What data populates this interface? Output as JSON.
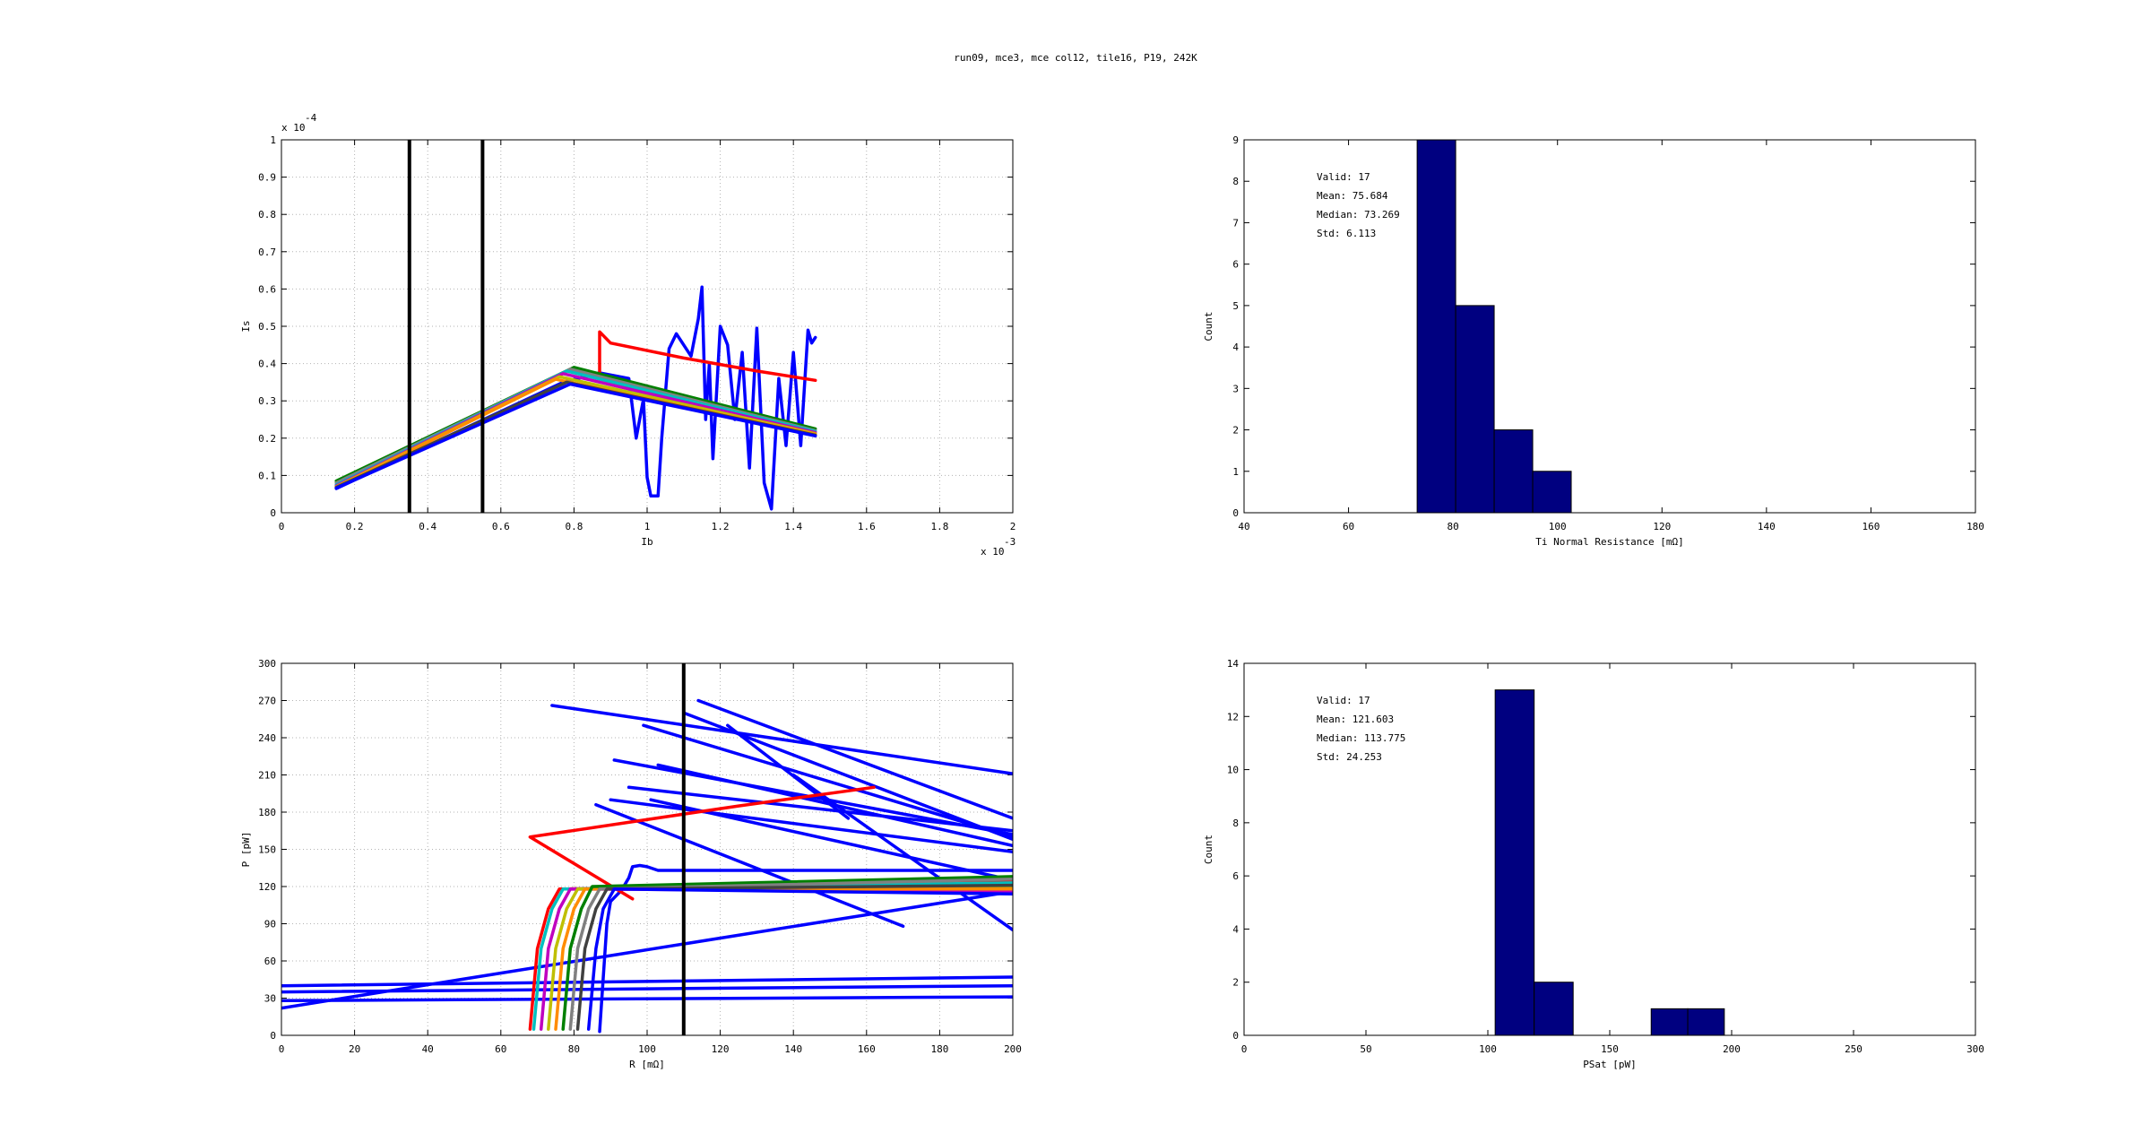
{
  "figure": {
    "title": "run09, mce3, mce col12, tile16, P19, 242K"
  },
  "colors": {
    "hist_fill": "#000080",
    "vline": "#000000",
    "grid": "#b3b3b3",
    "bundle": [
      "#0000ff",
      "#ff0000",
      "#00bfbf",
      "#bf00bf",
      "#bfbf00",
      "#ff8c00",
      "#404040",
      "#008000",
      "#808080"
    ]
  },
  "chart_data": [
    {
      "id": "iv",
      "type": "line",
      "xlabel": "Ib",
      "ylabel": "Is",
      "xlim": [
        0,
        0.002
      ],
      "ylim": [
        0,
        0.0001
      ],
      "x_multiplier": "x 10",
      "x_exponent": "-3",
      "y_multiplier": "x 10",
      "y_exponent": "-4",
      "xticks": [
        "0",
        "0.2",
        "0.4",
        "0.6",
        "0.8",
        "1",
        "1.2",
        "1.4",
        "1.6",
        "1.8",
        "2"
      ],
      "yticks": [
        "0",
        "0.1",
        "0.2",
        "0.3",
        "0.4",
        "0.5",
        "0.6",
        "0.7",
        "0.8",
        "0.9",
        "1"
      ],
      "grid": true,
      "vlines": [
        0.00035,
        0.00055
      ],
      "series": [
        {
          "color": "#0000ff",
          "x": [
            0.00015,
            0.00077,
            0.00087,
            0.00095,
            0.00097,
            0.00099,
            0.001,
            0.00101,
            0.00103,
            0.00104,
            0.00106,
            0.00108,
            0.0011,
            0.00112,
            0.00114,
            0.00115,
            0.00116,
            0.00117,
            0.00118,
            0.0012,
            0.00122,
            0.00124,
            0.00126,
            0.00128,
            0.0013,
            0.00132,
            0.00134,
            0.00136,
            0.00138,
            0.0014,
            0.00142,
            0.00144,
            0.00145,
            0.00146
          ],
          "y": [
            6.5e-06,
            3.5e-05,
            3.75e-05,
            3.6e-05,
            2e-05,
            3.05e-05,
            9.5e-06,
            4.5e-06,
            4.5e-06,
            2e-05,
            4.4e-05,
            4.8e-05,
            4.5e-05,
            4.2e-05,
            5.2e-05,
            6.05e-05,
            2.5e-05,
            4e-05,
            1.45e-05,
            5e-05,
            4.5e-05,
            2.5e-05,
            4.3e-05,
            1.2e-05,
            4.95e-05,
            8e-06,
            1e-06,
            3.6e-05,
            1.8e-05,
            4.3e-05,
            1.8e-05,
            4.9e-05,
            4.55e-05,
            4.7e-05
          ]
        },
        {
          "color": "#ff0000",
          "x": [
            0.00087,
            0.00087,
            0.0009,
            0.0011,
            0.0013,
            0.00146
          ],
          "y": [
            3.7e-05,
            4.85e-05,
            4.55e-05,
            4.15e-05,
            3.8e-05,
            3.55e-05
          ]
        },
        {
          "color": "#008000",
          "x": [
            0.00015,
            0.0008,
            0.00146
          ],
          "y": [
            8.5e-06,
            3.9e-05,
            2.25e-05
          ]
        },
        {
          "color": "#808080",
          "x": [
            0.00015,
            0.00079,
            0.00146
          ],
          "y": [
            8e-06,
            3.85e-05,
            2.2e-05
          ]
        },
        {
          "color": "#00bfbf",
          "x": [
            0.00015,
            0.00078,
            0.00146
          ],
          "y": [
            7.5e-06,
            3.8e-05,
            2.18e-05
          ]
        },
        {
          "color": "#bf00bf",
          "x": [
            0.00015,
            0.00077,
            0.00146
          ],
          "y": [
            7.2e-06,
            3.73e-05,
            2.15e-05
          ]
        },
        {
          "color": "#bfbf00",
          "x": [
            0.00015,
            0.00076,
            0.00146
          ],
          "y": [
            7e-06,
            3.65e-05,
            2.12e-05
          ]
        },
        {
          "color": "#ff8c00",
          "x": [
            0.00015,
            0.00075,
            0.00146
          ],
          "y": [
            6.8e-06,
            3.58e-05,
            2.1e-05
          ]
        },
        {
          "color": "#404040",
          "x": [
            0.00015,
            0.00078,
            0.00146
          ],
          "y": [
            6.8e-06,
            3.5e-05,
            2.08e-05
          ]
        },
        {
          "color": "#0000ff",
          "x": [
            0.00015,
            0.00079,
            0.00146
          ],
          "y": [
            6.6e-06,
            3.45e-05,
            2.06e-05
          ]
        }
      ]
    },
    {
      "id": "hist_rn",
      "type": "bar",
      "xlabel": "Ti Normal Resistance [mΩ]",
      "ylabel": "Count",
      "xlim": [
        30,
        180
      ],
      "ylim": [
        0,
        9
      ],
      "xticks": [
        "40",
        "60",
        "80",
        "100",
        "120",
        "140",
        "160",
        "180"
      ],
      "yticks": [
        "0",
        "1",
        "2",
        "3",
        "4",
        "5",
        "6",
        "7",
        "8",
        "9"
      ],
      "bins": [
        {
          "from": 65.5,
          "to": 73.4,
          "count": 9
        },
        {
          "from": 73.4,
          "to": 81.3,
          "count": 5
        },
        {
          "from": 81.3,
          "to": 89.2,
          "count": 2
        },
        {
          "from": 89.2,
          "to": 97.1,
          "count": 1
        }
      ],
      "stats": [
        "Valid: 17",
        "Mean: 75.684",
        "Median: 73.269",
        "Std: 6.113"
      ]
    },
    {
      "id": "pr",
      "type": "line",
      "xlabel": "R [mΩ]",
      "ylabel": "P [pW]",
      "xlim": [
        0,
        200
      ],
      "ylim": [
        0,
        300
      ],
      "xticks": [
        "0",
        "20",
        "40",
        "60",
        "80",
        "100",
        "120",
        "140",
        "160",
        "180",
        "200"
      ],
      "yticks": [
        "0",
        "30",
        "60",
        "90",
        "120",
        "150",
        "180",
        "210",
        "240",
        "270",
        "300"
      ],
      "grid": true,
      "vlines": [
        110
      ],
      "series": [
        {
          "color": "#0000ff",
          "x": [
            0,
            200
          ],
          "y": [
            40,
            47
          ]
        },
        {
          "color": "#0000ff",
          "x": [
            0,
            200
          ],
          "y": [
            35,
            40
          ]
        },
        {
          "color": "#0000ff",
          "x": [
            0,
            200
          ],
          "y": [
            28,
            31
          ]
        },
        {
          "color": "#0000ff",
          "x": [
            0,
            200
          ],
          "y": [
            22,
            116
          ]
        },
        {
          "color": "#0000ff",
          "x": [
            74,
            200
          ],
          "y": [
            266,
            211
          ]
        },
        {
          "color": "#0000ff",
          "x": [
            110,
            200
          ],
          "y": [
            260,
            158
          ]
        },
        {
          "color": "#0000ff",
          "x": [
            114,
            200
          ],
          "y": [
            270,
            175
          ]
        },
        {
          "color": "#0000ff",
          "x": [
            99,
            200
          ],
          "y": [
            250,
            160
          ]
        },
        {
          "color": "#0000ff",
          "x": [
            103,
            200
          ],
          "y": [
            218,
            153
          ]
        },
        {
          "color": "#0000ff",
          "x": [
            90,
            200
          ],
          "y": [
            190,
            148
          ]
        },
        {
          "color": "#0000ff",
          "x": [
            86,
            170
          ],
          "y": [
            186,
            88
          ]
        },
        {
          "color": "#0000ff",
          "x": [
            101,
            200
          ],
          "y": [
            190,
            125
          ]
        },
        {
          "color": "#0000ff",
          "x": [
            91,
            200
          ],
          "y": [
            222,
            162
          ]
        },
        {
          "color": "#0000ff",
          "x": [
            140,
            200
          ],
          "y": [
            210,
            85
          ]
        },
        {
          "color": "#0000ff",
          "x": [
            95,
            200
          ],
          "y": [
            200,
            165
          ]
        },
        {
          "color": "#0000ff",
          "x": [
            122,
            155
          ],
          "y": [
            250,
            175
          ]
        },
        {
          "color": "#0000ff",
          "x": [
            87,
            89,
            90,
            93,
            95,
            96,
            98,
            100,
            103,
            200
          ],
          "y": [
            3,
            90,
            108,
            117,
            127,
            136,
            137,
            136,
            133,
            133
          ]
        },
        {
          "color": "#ff0000",
          "x": [
            96,
            68,
            125,
            162
          ],
          "y": [
            110,
            160,
            185,
            200
          ]
        },
        {
          "color": "#ff0000",
          "x": [
            68,
            70,
            73,
            76,
            200
          ],
          "y": [
            5,
            70,
            102,
            118,
            124
          ]
        },
        {
          "color": "#00bfbf",
          "x": [
            69,
            71,
            74,
            77,
            200
          ],
          "y": [
            5,
            70,
            102,
            118,
            123
          ]
        },
        {
          "color": "#bf00bf",
          "x": [
            71,
            73,
            76,
            79,
            200
          ],
          "y": [
            5,
            70,
            102,
            118,
            116
          ]
        },
        {
          "color": "#bfbf00",
          "x": [
            73,
            75,
            78,
            81,
            200
          ],
          "y": [
            5,
            70,
            102,
            118,
            120
          ]
        },
        {
          "color": "#ff8c00",
          "x": [
            75,
            77,
            80,
            83,
            200
          ],
          "y": [
            5,
            70,
            102,
            118,
            118
          ]
        },
        {
          "color": "#008000",
          "x": [
            77,
            79,
            82,
            85,
            200
          ],
          "y": [
            5,
            70,
            102,
            120,
            128
          ]
        },
        {
          "color": "#808080",
          "x": [
            79,
            81,
            84,
            87,
            200
          ],
          "y": [
            5,
            70,
            102,
            118,
            126
          ]
        },
        {
          "color": "#404040",
          "x": [
            81,
            83,
            86,
            89,
            200
          ],
          "y": [
            5,
            70,
            102,
            118,
            121
          ]
        },
        {
          "color": "#0000ff",
          "x": [
            84,
            86,
            88,
            91,
            200
          ],
          "y": [
            5,
            70,
            102,
            118,
            114
          ]
        }
      ]
    },
    {
      "id": "hist_psat",
      "type": "bar",
      "xlabel": "PSat [pW]",
      "ylabel": "Count",
      "xlim": [
        0,
        300
      ],
      "ylim": [
        0,
        14
      ],
      "xticks": [
        "0",
        "50",
        "100",
        "150",
        "200",
        "250",
        "300"
      ],
      "yticks": [
        "0",
        "2",
        "4",
        "6",
        "8",
        "10",
        "12",
        "14"
      ],
      "bins": [
        {
          "from": 103,
          "to": 119,
          "count": 13
        },
        {
          "from": 119,
          "to": 135,
          "count": 2
        },
        {
          "from": 167,
          "to": 182,
          "count": 1
        },
        {
          "from": 182,
          "to": 197,
          "count": 1
        }
      ],
      "stats": [
        "Valid: 17",
        "Mean: 121.603",
        "Median: 113.775",
        "Std: 24.253"
      ]
    }
  ]
}
